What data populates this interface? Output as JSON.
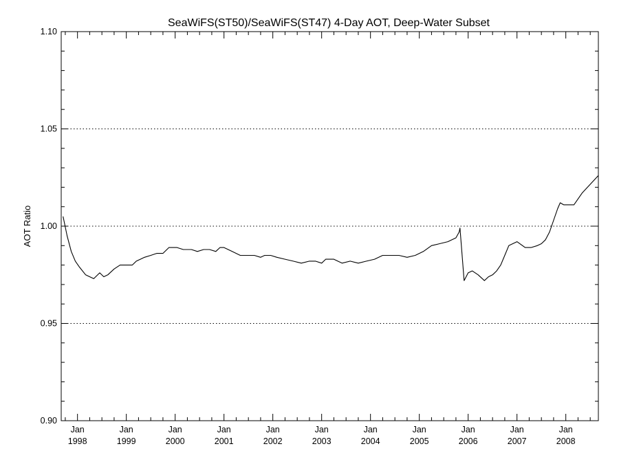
{
  "chart_data": {
    "type": "line",
    "title": "SeaWiFS(ST50)/SeaWiFS(ST47) 4-Day AOT, Deep-Water Subset",
    "xlabel": "",
    "ylabel": "AOT Ratio",
    "xlim": [
      "1997-09",
      "2008-09"
    ],
    "ylim": [
      0.9,
      1.1
    ],
    "y_ticks": [
      "0.90",
      "0.95",
      "1.00",
      "1.05",
      "1.10"
    ],
    "x_ticks": [
      {
        "month": "Jan",
        "year": "1998"
      },
      {
        "month": "Jan",
        "year": "1999"
      },
      {
        "month": "Jan",
        "year": "2000"
      },
      {
        "month": "Jan",
        "year": "2001"
      },
      {
        "month": "Jan",
        "year": "2002"
      },
      {
        "month": "Jan",
        "year": "2003"
      },
      {
        "month": "Jan",
        "year": "2004"
      },
      {
        "month": "Jan",
        "year": "2005"
      },
      {
        "month": "Jan",
        "year": "2006"
      },
      {
        "month": "Jan",
        "year": "2007"
      },
      {
        "month": "Jan",
        "year": "2008"
      }
    ],
    "reference_lines": [
      0.95,
      1.0,
      1.05
    ],
    "grid": "dotted horizontal lines at 0.95, 1.00, 1.05",
    "series": [
      {
        "x": [
          "1997-09-15",
          "1997-10-15",
          "1997-11-15",
          "1997-12-15",
          "1998-01-15",
          "1998-03-01",
          "1998-05-01",
          "1998-06-15",
          "1998-07-15",
          "1998-08-15",
          "1998-10-01",
          "1998-11-15",
          "1999-01-01",
          "1999-02-15",
          "1999-03-15",
          "1999-04-15",
          "1999-05-15",
          "1999-07-01",
          "1999-08-15",
          "1999-10-01",
          "1999-11-15",
          "1999-12-15",
          "2000-01-15",
          "2000-03-01",
          "2000-05-01",
          "2000-06-15",
          "2000-08-01",
          "2000-09-15",
          "2000-11-01",
          "2000-12-01",
          "2001-01-01",
          "2001-03-01",
          "2001-05-01",
          "2001-07-01",
          "2001-08-15",
          "2001-10-01",
          "2001-11-01",
          "2001-12-15",
          "2002-02-01",
          "2002-04-01",
          "2002-06-01",
          "2002-08-01",
          "2002-10-01",
          "2002-11-15",
          "2003-01-01",
          "2003-02-01",
          "2003-04-01",
          "2003-06-01",
          "2003-08-01",
          "2003-10-01",
          "2003-12-01",
          "2004-02-01",
          "2004-04-01",
          "2004-06-01",
          "2004-08-01",
          "2004-10-01",
          "2004-12-01",
          "2005-02-01",
          "2005-04-01",
          "2005-06-01",
          "2005-08-01",
          "2005-10-01",
          "2005-10-25",
          "2005-11-01",
          "2005-12-01",
          "2006-01-01",
          "2006-02-01",
          "2006-03-15",
          "2006-05-01",
          "2006-06-01",
          "2006-07-01",
          "2006-08-01",
          "2006-09-01",
          "2006-10-01",
          "2006-11-01",
          "2007-01-01",
          "2007-03-01",
          "2007-04-15",
          "2007-06-01",
          "2007-07-01",
          "2007-08-01",
          "2007-09-01",
          "2007-10-01",
          "2007-11-01",
          "2007-11-20",
          "2007-12-15",
          "2008-03-01",
          "2008-05-01",
          "2008-09-01"
        ],
        "y": [
          1.005,
          0.995,
          0.987,
          0.982,
          0.979,
          0.975,
          0.973,
          0.976,
          0.974,
          0.975,
          0.978,
          0.98,
          0.98,
          0.98,
          0.982,
          0.983,
          0.984,
          0.985,
          0.986,
          0.986,
          0.989,
          0.989,
          0.989,
          0.988,
          0.988,
          0.987,
          0.988,
          0.988,
          0.987,
          0.989,
          0.989,
          0.987,
          0.985,
          0.985,
          0.985,
          0.984,
          0.985,
          0.985,
          0.984,
          0.983,
          0.982,
          0.981,
          0.982,
          0.982,
          0.981,
          0.983,
          0.983,
          0.981,
          0.982,
          0.981,
          0.982,
          0.983,
          0.985,
          0.985,
          0.985,
          0.984,
          0.985,
          0.987,
          0.99,
          0.991,
          0.992,
          0.994,
          0.997,
          0.999,
          0.972,
          0.976,
          0.977,
          0.975,
          0.972,
          0.974,
          0.975,
          0.977,
          0.98,
          0.985,
          0.99,
          0.992,
          0.989,
          0.989,
          0.99,
          0.991,
          0.993,
          0.997,
          1.003,
          1.009,
          1.012,
          1.011,
          1.011,
          1.017,
          1.026
        ]
      }
    ]
  }
}
